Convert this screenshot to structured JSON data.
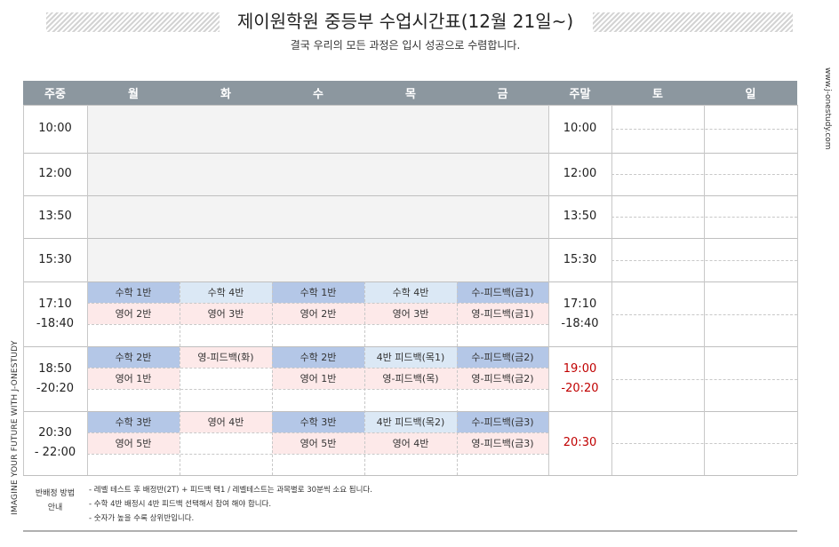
{
  "header": {
    "title": "제이원학원 중등부 수업시간표(12월 21일~)",
    "subtitle": "결국 우리의 모든 과정은 입시 성공으로 수렴합니다."
  },
  "side": {
    "left": "IMAGINE YOUR FUTURE WITH J-ONESTUDY",
    "right": "www.j-onestudy.com"
  },
  "columns": [
    "주중",
    "월",
    "화",
    "수",
    "목",
    "금",
    "주말",
    "토",
    "일"
  ],
  "weekday_times": [
    "10:00",
    "12:00",
    "13:50",
    "15:30",
    "17:10\n-18:40",
    "18:50\n-20:20",
    "20:30\n- 22:00"
  ],
  "weekend_times": [
    "10:00",
    "12:00",
    "13:50",
    "15:30",
    "17:10\n-18:40",
    "19:00\n-20:20",
    "20:30"
  ],
  "weekend_time_colors": [
    "#222222",
    "#222222",
    "#222222",
    "#222222",
    "#222222",
    "#c00000",
    "#c00000"
  ],
  "schedule": [
    {
      "row1": [
        "수학 1반",
        "수학 4반",
        "수학 1반",
        "수학 4반",
        "수-피드백(금1)"
      ],
      "row2": [
        "영어 2반",
        "영어 3반",
        "영어 2반",
        "영어 3반",
        "영-피드백(금1)"
      ]
    },
    {
      "row1": [
        "수학 2반",
        "영-피드백(화)",
        "수학 2반",
        "4반 피드백(목1)",
        "수-피드백(금2)"
      ],
      "row2": [
        "영어 1반",
        "",
        "영어 1반",
        "영-피드백(목)",
        "영-피드백(금2)"
      ]
    },
    {
      "row1": [
        "수학 3반",
        "영어 4반",
        "수학 3반",
        "4반 피드백(목2)",
        "수-피드백(금3)"
      ],
      "row2": [
        "영어 5반",
        "",
        "영어 5반",
        "영어 4반",
        "영-피드백(금3)"
      ]
    }
  ],
  "cell_colors": {
    "blue": "#b4c7e7",
    "light_blue": "#dbe8f5",
    "pink": "#fde9e9",
    "header": "#8c979f"
  },
  "notes": {
    "label": "반배정 방법\n안내",
    "items": [
      "- 레벨 테스트 후 배정반(2T) + 피드백 택1 / 레벨테스트는 과목별로 30분씩 소요 됩니다.",
      "- 수학 4반 배정시 4반 피드백 선택해서 참여 해야 합니다.",
      "- 숫자가 높을 수록 상위반입니다."
    ]
  }
}
